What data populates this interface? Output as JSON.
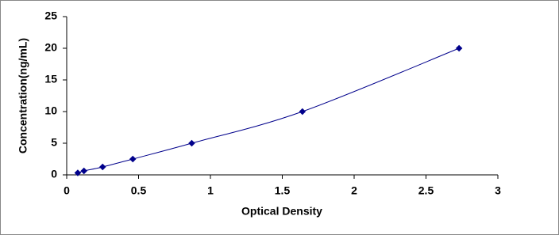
{
  "chart_data": {
    "type": "scatter",
    "x_label": "Optical Density",
    "y_label": "Concentration(ng/mL)",
    "series": [
      {
        "color": "#00008b",
        "x": [
          0.077,
          0.12,
          0.25,
          0.46,
          0.87,
          1.64,
          2.73
        ],
        "values": [
          0.31,
          0.63,
          1.25,
          2.5,
          5,
          10,
          20
        ]
      }
    ],
    "xlim": [
      0,
      3
    ],
    "xticks": [
      0,
      0.5,
      1,
      1.5,
      2,
      2.5,
      3
    ],
    "ylim": [
      0,
      25
    ],
    "yticks": [
      0,
      5,
      10,
      15,
      20,
      25
    ]
  }
}
